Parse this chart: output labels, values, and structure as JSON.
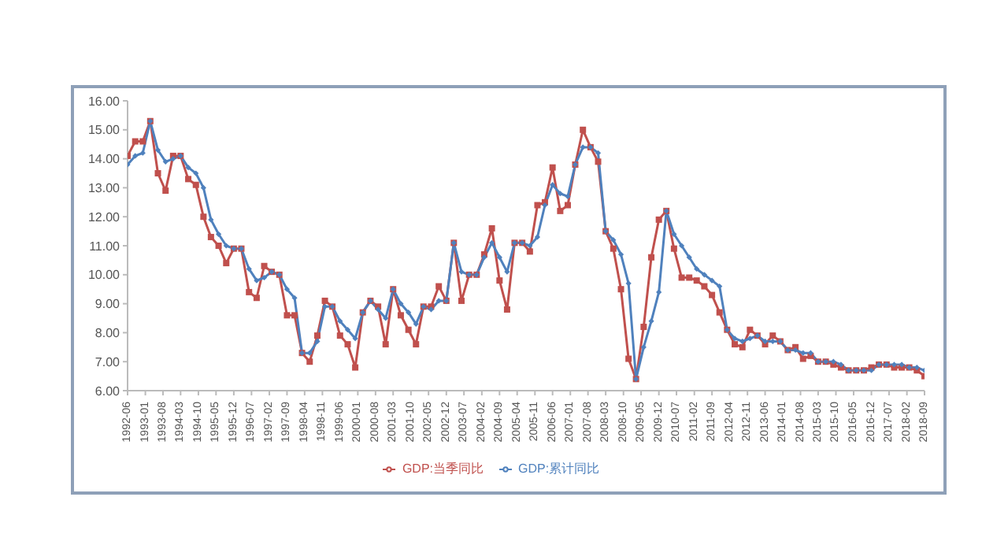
{
  "chart_data": {
    "type": "line",
    "x": [
      "1992-06",
      "1992-09",
      "1992-12",
      "1993-03",
      "1993-06",
      "1993-09",
      "1993-12",
      "1994-03",
      "1994-06",
      "1994-09",
      "1994-12",
      "1995-03",
      "1995-06",
      "1995-09",
      "1995-12",
      "1996-03",
      "1996-06",
      "1996-09",
      "1996-12",
      "1997-03",
      "1997-06",
      "1997-09",
      "1997-12",
      "1998-03",
      "1998-06",
      "1998-09",
      "1998-12",
      "1999-03",
      "1999-06",
      "1999-09",
      "1999-12",
      "2000-03",
      "2000-06",
      "2000-09",
      "2000-12",
      "2001-03",
      "2001-06",
      "2001-09",
      "2001-12",
      "2002-03",
      "2002-06",
      "2002-09",
      "2002-12",
      "2003-03",
      "2003-06",
      "2003-09",
      "2003-12",
      "2004-03",
      "2004-06",
      "2004-09",
      "2004-12",
      "2005-03",
      "2005-06",
      "2005-09",
      "2005-12",
      "2006-03",
      "2006-06",
      "2006-09",
      "2006-12",
      "2007-03",
      "2007-06",
      "2007-09",
      "2007-12",
      "2008-03",
      "2008-06",
      "2008-09",
      "2008-12",
      "2009-03",
      "2009-06",
      "2009-09",
      "2009-12",
      "2010-03",
      "2010-06",
      "2010-09",
      "2010-12",
      "2011-03",
      "2011-06",
      "2011-09",
      "2011-12",
      "2012-03",
      "2012-06",
      "2012-09",
      "2012-12",
      "2013-03",
      "2013-06",
      "2013-09",
      "2013-12",
      "2014-03",
      "2014-06",
      "2014-09",
      "2014-12",
      "2015-03",
      "2015-06",
      "2015-09",
      "2015-12",
      "2016-03",
      "2016-06",
      "2016-09",
      "2016-12",
      "2017-03",
      "2017-06",
      "2017-09",
      "2017-12",
      "2018-03",
      "2018-06",
      "2018-09"
    ],
    "series": [
      {
        "name": "GDP:当季同比",
        "color": "#c0504d",
        "marker": "square",
        "values": [
          14.1,
          14.6,
          14.6,
          15.3,
          13.5,
          12.9,
          14.1,
          14.1,
          13.3,
          13.1,
          12.0,
          11.3,
          11.0,
          10.4,
          10.9,
          10.9,
          9.4,
          9.2,
          10.3,
          10.1,
          10.0,
          8.6,
          8.6,
          7.3,
          7.0,
          7.9,
          9.1,
          8.9,
          7.9,
          7.6,
          6.8,
          8.7,
          9.1,
          8.9,
          7.6,
          9.5,
          8.6,
          8.1,
          7.6,
          8.9,
          8.9,
          9.6,
          9.1,
          11.1,
          9.1,
          10.0,
          10.0,
          10.7,
          11.6,
          9.8,
          8.8,
          11.1,
          11.1,
          10.8,
          12.4,
          12.5,
          13.7,
          12.2,
          12.4,
          13.8,
          15.0,
          14.4,
          13.9,
          11.5,
          10.9,
          9.5,
          7.1,
          6.4,
          8.2,
          10.6,
          11.9,
          12.2,
          10.9,
          9.9,
          9.9,
          9.8,
          9.6,
          9.3,
          8.7,
          8.1,
          7.6,
          7.5,
          8.1,
          7.9,
          7.6,
          7.9,
          7.7,
          7.4,
          7.5,
          7.1,
          7.2,
          7.0,
          7.0,
          6.9,
          6.8,
          6.7,
          6.7,
          6.7,
          6.8,
          6.9,
          6.9,
          6.8,
          6.8,
          6.8,
          6.7,
          6.5
        ]
      },
      {
        "name": "GDP:累计同比",
        "color": "#4f81bd",
        "marker": "diamond",
        "values": [
          13.8,
          14.1,
          14.2,
          15.3,
          14.3,
          13.9,
          14.0,
          14.1,
          13.7,
          13.5,
          13.0,
          11.9,
          11.4,
          11.0,
          10.9,
          10.9,
          10.2,
          9.8,
          9.9,
          10.1,
          10.0,
          9.5,
          9.2,
          7.3,
          7.3,
          7.7,
          8.9,
          8.9,
          8.4,
          8.1,
          7.8,
          8.7,
          9.1,
          8.8,
          8.5,
          9.5,
          9.0,
          8.7,
          8.3,
          8.9,
          8.8,
          9.1,
          9.1,
          11.1,
          10.1,
          10.0,
          10.0,
          10.6,
          11.1,
          10.6,
          10.1,
          11.1,
          11.1,
          11.0,
          11.3,
          12.4,
          13.1,
          12.8,
          12.7,
          13.8,
          14.4,
          14.4,
          14.2,
          11.5,
          11.2,
          10.7,
          9.7,
          6.4,
          7.5,
          8.4,
          9.4,
          12.2,
          11.4,
          11.0,
          10.6,
          10.2,
          10.0,
          9.8,
          9.6,
          8.1,
          7.8,
          7.7,
          7.8,
          7.9,
          7.7,
          7.7,
          7.7,
          7.4,
          7.4,
          7.3,
          7.3,
          7.0,
          7.0,
          7.0,
          6.9,
          6.7,
          6.7,
          6.7,
          6.7,
          6.9,
          6.9,
          6.9,
          6.9,
          6.8,
          6.8,
          6.7
        ]
      }
    ],
    "xlim": [
      "1992-06",
      "2018-09"
    ],
    "xticks": [
      "1992-06",
      "1993-01",
      "1993-08",
      "1994-03",
      "1994-10",
      "1995-05",
      "1995-12",
      "1996-07",
      "1997-02",
      "1997-09",
      "1998-04",
      "1998-11",
      "1999-06",
      "2000-01",
      "2000-08",
      "2001-03",
      "2001-10",
      "2002-05",
      "2002-12",
      "2003-07",
      "2004-02",
      "2004-09",
      "2005-04",
      "2005-11",
      "2006-06",
      "2007-01",
      "2007-08",
      "2008-03",
      "2008-10",
      "2009-05",
      "2009-12",
      "2010-07",
      "2011-02",
      "2011-09",
      "2012-04",
      "2012-11",
      "2013-06",
      "2014-01",
      "2014-08",
      "2015-03",
      "2015-10",
      "2016-05",
      "2016-12",
      "2017-07",
      "2018-02",
      "2018-09"
    ],
    "ylim": [
      6,
      16
    ],
    "yticks": [
      {
        "value": 6,
        "label": "6.00"
      },
      {
        "value": 7,
        "label": "7.00"
      },
      {
        "value": 8,
        "label": "8.00"
      },
      {
        "value": 9,
        "label": "9.00"
      },
      {
        "value": 10,
        "label": "10.00"
      },
      {
        "value": 11,
        "label": "11.00"
      },
      {
        "value": 12,
        "label": "12.00"
      },
      {
        "value": 13,
        "label": "13.00"
      },
      {
        "value": 14,
        "label": "14.00"
      },
      {
        "value": 15,
        "label": "15.00"
      },
      {
        "value": 16,
        "label": "16.00"
      }
    ],
    "legend": "bottom",
    "grid": false,
    "line_style": "solid"
  }
}
